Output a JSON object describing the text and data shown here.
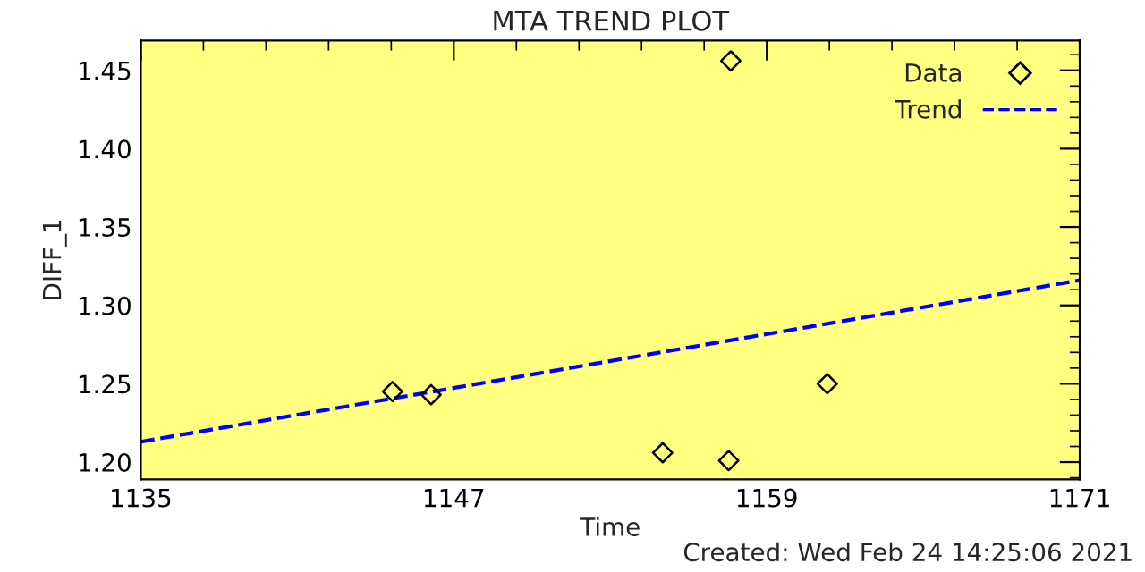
{
  "chart_data": {
    "type": "scatter",
    "title": "MTA TREND PLOT",
    "xlabel": "Time",
    "ylabel": "DIFF_1",
    "annotations": [
      "Created: Wed Feb 24 14:25:06 2021"
    ],
    "series": [
      {
        "name": "Data",
        "color": "#000000",
        "marker": "diamond",
        "x": [
          1144.65,
          1146.13,
          1155.01,
          1157.54,
          1157.62,
          1161.32
        ],
        "values": [
          1.245,
          1.243,
          1.206,
          1.201,
          1.456,
          1.25
        ]
      },
      {
        "name": "Trend",
        "type": "line",
        "color": "#0000ff",
        "line_style": "dashed",
        "x": [
          1135,
          1171
        ],
        "values": [
          1.213,
          1.316
        ]
      }
    ],
    "xlim": [
      1135,
      1171
    ],
    "xticks": [
      1135,
      1147,
      1159,
      1171
    ],
    "ylim": [
      1.189,
      1.469
    ],
    "yticks": [
      {
        "value": 1.2,
        "label": "1.20"
      },
      {
        "value": 1.25,
        "label": "1.25"
      },
      {
        "value": 1.3,
        "label": "1.30"
      },
      {
        "value": 1.35,
        "label": "1.35"
      },
      {
        "value": 1.4,
        "label": "1.40"
      },
      {
        "value": 1.45,
        "label": "1.45"
      }
    ],
    "grid": false,
    "legend": "top right"
  }
}
